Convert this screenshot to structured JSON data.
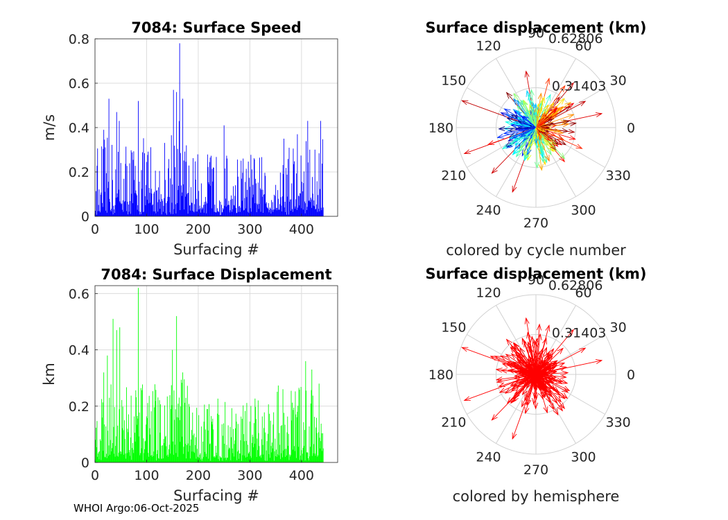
{
  "footer": "WHOI Argo:06-Oct-2025",
  "chart_data": [
    {
      "type": "bar",
      "title": "7084: Surface Speed",
      "xlabel": "Surfacing #",
      "ylabel": "m/s",
      "xlim": [
        0,
        470
      ],
      "ylim": [
        0,
        0.8
      ],
      "xticks": [
        "0",
        "100",
        "200",
        "300",
        "400"
      ],
      "yticks": [
        "0",
        "0.2",
        "0.4",
        "0.6",
        "0.8"
      ],
      "color": "#0000ff",
      "highlights": [
        {
          "x": 17,
          "y": 0.39
        },
        {
          "x": 27,
          "y": 0.53
        },
        {
          "x": 42,
          "y": 0.47
        },
        {
          "x": 47,
          "y": 0.43
        },
        {
          "x": 84,
          "y": 0.52
        },
        {
          "x": 152,
          "y": 0.57
        },
        {
          "x": 158,
          "y": 0.56
        },
        {
          "x": 164,
          "y": 0.78
        },
        {
          "x": 170,
          "y": 0.53
        },
        {
          "x": 250,
          "y": 0.41
        },
        {
          "x": 366,
          "y": 0.35
        },
        {
          "x": 392,
          "y": 0.37
        },
        {
          "x": 412,
          "y": 0.43
        },
        {
          "x": 437,
          "y": 0.43
        },
        {
          "x": 442,
          "y": 0.04
        }
      ]
    },
    {
      "type": "bar",
      "title": "7084: Surface Displacement",
      "xlabel": "Surfacing #",
      "ylabel": "km",
      "xlim": [
        0,
        470
      ],
      "ylim": [
        0,
        0.628
      ],
      "xticks": [
        "0",
        "100",
        "200",
        "300",
        "400"
      ],
      "yticks": [
        "0",
        "0.2",
        "0.4",
        "0.6"
      ],
      "color": "#00ff00",
      "highlights": [
        {
          "x": 17,
          "y": 0.32
        },
        {
          "x": 24,
          "y": 0.38
        },
        {
          "x": 35,
          "y": 0.51
        },
        {
          "x": 42,
          "y": 0.47
        },
        {
          "x": 48,
          "y": 0.48
        },
        {
          "x": 84,
          "y": 0.62
        },
        {
          "x": 150,
          "y": 0.4
        },
        {
          "x": 158,
          "y": 0.52
        },
        {
          "x": 170,
          "y": 0.32
        },
        {
          "x": 360,
          "y": 0.13
        },
        {
          "x": 392,
          "y": 0.18
        },
        {
          "x": 408,
          "y": 0.36
        },
        {
          "x": 420,
          "y": 0.33
        },
        {
          "x": 434,
          "y": 0.28
        },
        {
          "x": 442,
          "y": 0.05
        }
      ]
    },
    {
      "type": "polar",
      "title": "Surface displacement (km)",
      "xlabel": "colored by cycle number",
      "rmax": 0.62806,
      "rlabels": [
        "0.31403",
        "0.62806"
      ],
      "angle_labels": [
        "0",
        "30",
        "60",
        "90",
        "120",
        "150",
        "180",
        "210",
        "240",
        "270",
        "300",
        "330"
      ],
      "colormap": "jet",
      "long_vectors": [
        {
          "angle": 160,
          "r": 0.62
        },
        {
          "angle": 200,
          "r": 0.6
        },
        {
          "angle": 226,
          "r": 0.5
        },
        {
          "angle": 250,
          "r": 0.54
        },
        {
          "angle": 100,
          "r": 0.45
        },
        {
          "angle": 50,
          "r": 0.46
        },
        {
          "angle": 12,
          "r": 0.53
        },
        {
          "angle": 28,
          "r": 0.44
        },
        {
          "angle": 310,
          "r": 0.35
        },
        {
          "angle": 130,
          "r": 0.36
        },
        {
          "angle": 75,
          "r": 0.4
        }
      ]
    },
    {
      "type": "polar",
      "title": "Surface displacement (km)",
      "xlabel": "colored by hemisphere",
      "rmax": 0.62806,
      "rlabels": [
        "0.31403",
        "0.62806"
      ],
      "angle_labels": [
        "0",
        "30",
        "60",
        "90",
        "120",
        "150",
        "180",
        "210",
        "240",
        "270",
        "300",
        "330"
      ],
      "colormap": "red",
      "long_vectors": [
        {
          "angle": 160,
          "r": 0.62
        },
        {
          "angle": 200,
          "r": 0.6
        },
        {
          "angle": 226,
          "r": 0.5
        },
        {
          "angle": 250,
          "r": 0.54
        },
        {
          "angle": 100,
          "r": 0.45
        },
        {
          "angle": 50,
          "r": 0.46
        },
        {
          "angle": 12,
          "r": 0.53
        },
        {
          "angle": 28,
          "r": 0.44
        },
        {
          "angle": 310,
          "r": 0.35
        },
        {
          "angle": 130,
          "r": 0.36
        },
        {
          "angle": 75,
          "r": 0.4
        }
      ]
    }
  ]
}
